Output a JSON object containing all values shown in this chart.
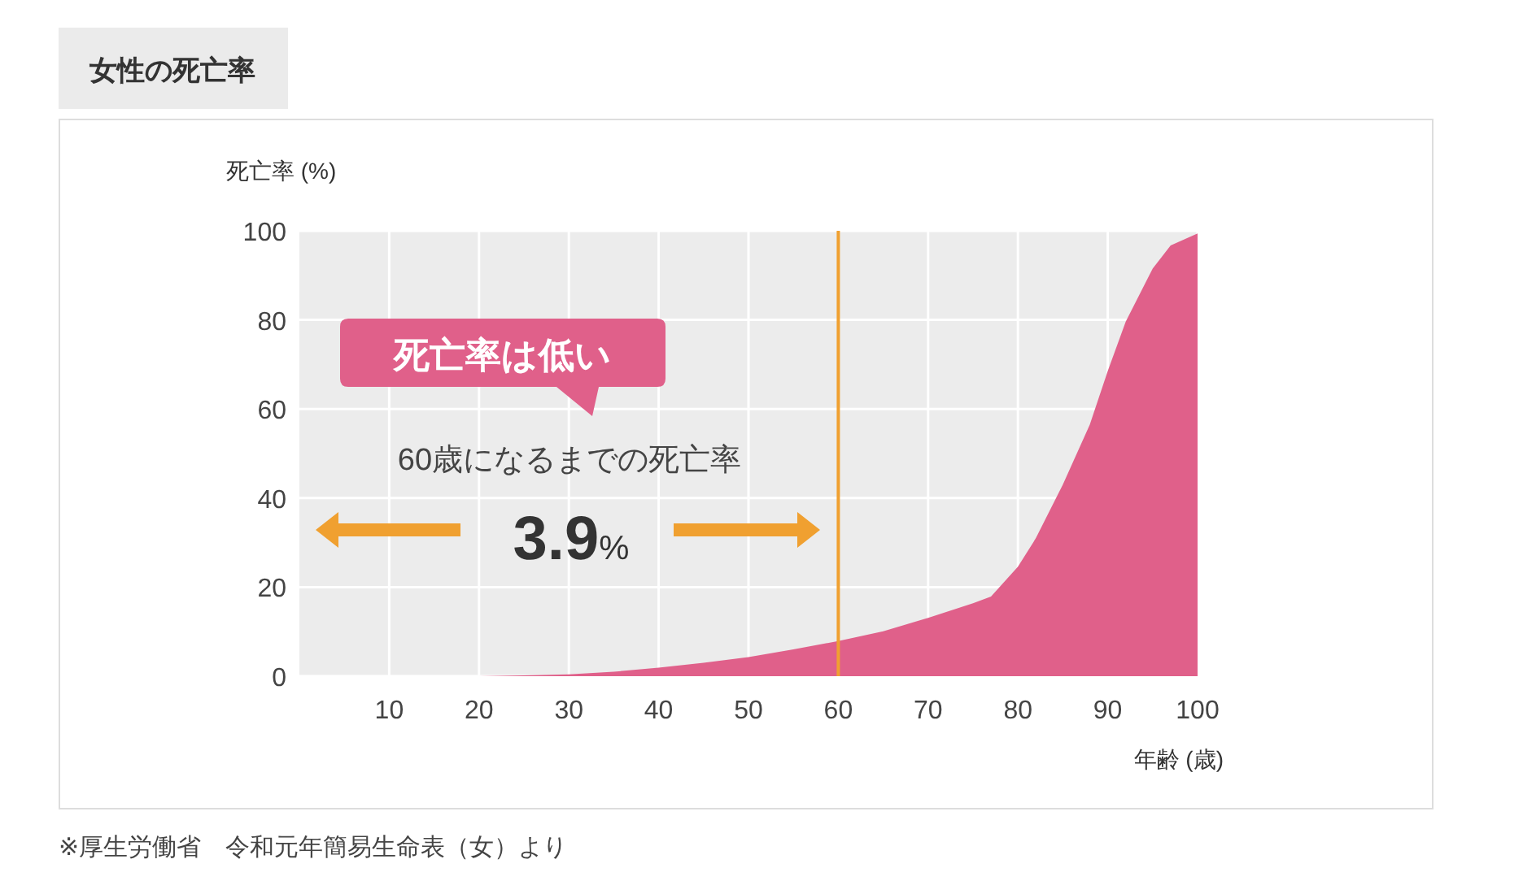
{
  "chart_data": {
    "type": "area",
    "title": "女性の死亡率",
    "xlabel": "年齢 (歳)",
    "ylabel": "死亡率 (%)",
    "x": [
      0,
      10,
      20,
      25,
      30,
      35,
      40,
      45,
      50,
      55,
      60,
      65,
      70,
      75,
      77,
      80,
      82,
      85,
      88,
      90,
      92,
      95,
      97,
      100
    ],
    "series": [
      {
        "color": "#e0608a",
        "values": [
          0,
          0,
          0,
          0.2,
          0.4,
          1,
          1.9,
          3,
          4.3,
          6,
          7.9,
          10.1,
          13.1,
          16.4,
          17.9,
          24.6,
          31,
          43,
          56.5,
          68.5,
          79.6,
          91.5,
          96.7,
          99.4
        ]
      }
    ],
    "xlim": [
      0,
      100
    ],
    "ylim": [
      0,
      100
    ],
    "xticks": [
      10,
      20,
      30,
      40,
      50,
      60,
      70,
      80,
      90,
      100
    ],
    "yticks": [
      0,
      20,
      40,
      60,
      80,
      100
    ],
    "grid": true,
    "ref_lines": [
      {
        "axis": "x",
        "value": 60,
        "color": "#f0a030"
      }
    ],
    "annotations": [
      "死亡率は低い",
      "60歳になるまでの死亡率",
      "3.9%",
      "※厚生労働省　令和元年簡易生命表（女）より"
    ]
  }
}
